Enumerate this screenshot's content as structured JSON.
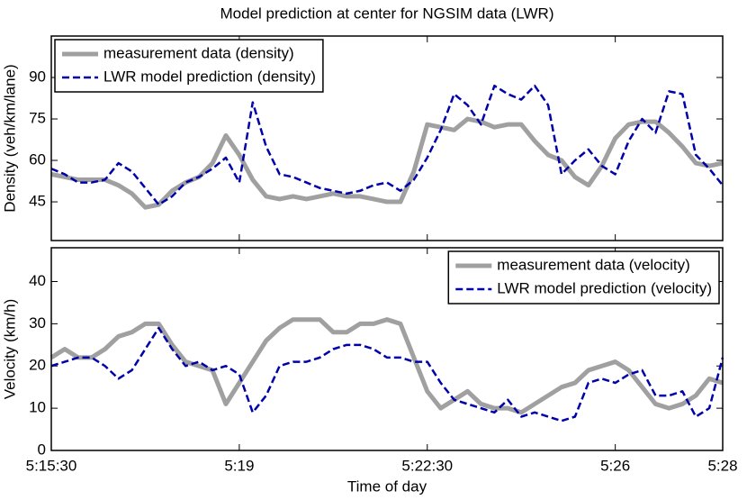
{
  "chart_data": [
    {
      "type": "line",
      "title": "Model prediction at center for NGSIM data (LWR)",
      "y_label": "Density (veh/km/lane)",
      "x": [
        18930,
        18945,
        18960,
        18975,
        18990,
        19005,
        19020,
        19035,
        19050,
        19065,
        19080,
        19095,
        19110,
        19125,
        19140,
        19155,
        19170,
        19185,
        19200,
        19215,
        19230,
        19245,
        19260,
        19275,
        19290,
        19305,
        19320,
        19335,
        19350,
        19365,
        19380,
        19395,
        19410,
        19425,
        19440,
        19455,
        19470,
        19485,
        19500,
        19515,
        19530,
        19545,
        19560,
        19575,
        19590,
        19605,
        19620,
        19635,
        19650,
        19665,
        19680
      ],
      "series": [
        {
          "name": "measurement data (density)",
          "color": "#a0a0a0",
          "values": [
            55,
            54,
            53,
            53,
            53,
            51,
            48,
            43,
            44,
            49,
            52,
            54,
            59,
            69,
            62,
            53,
            47,
            46,
            47,
            46,
            47,
            48,
            47,
            47,
            46,
            45,
            45,
            56,
            73,
            72,
            71,
            75,
            74,
            72,
            73,
            73,
            67,
            62,
            60,
            54,
            51,
            58,
            68,
            73,
            74,
            74,
            70,
            65,
            59,
            58,
            59
          ]
        },
        {
          "name": "LWR model prediction (density)",
          "color": "#0000aa",
          "values": [
            57,
            55,
            52,
            52,
            53,
            59,
            56,
            50,
            44,
            47,
            52,
            54,
            57,
            61,
            52,
            81,
            65,
            55,
            54,
            52,
            50,
            49,
            48,
            49,
            51,
            52,
            49,
            53,
            61,
            71,
            84,
            80,
            73,
            87,
            84,
            82,
            87,
            80,
            55,
            60,
            64,
            58,
            55,
            67,
            75,
            70,
            85,
            84,
            62,
            57,
            51
          ]
        }
      ],
      "xlim": [
        18930,
        19680
      ],
      "ylim": [
        31,
        105
      ],
      "yticks": [
        45,
        60,
        75,
        90
      ],
      "legend": "upper left"
    },
    {
      "type": "line",
      "x_label": "Time of day",
      "y_label": "Velocity (km/h)",
      "x": [
        18930,
        18945,
        18960,
        18975,
        18990,
        19005,
        19020,
        19035,
        19050,
        19065,
        19080,
        19095,
        19110,
        19125,
        19140,
        19155,
        19170,
        19185,
        19200,
        19215,
        19230,
        19245,
        19260,
        19275,
        19290,
        19305,
        19320,
        19335,
        19350,
        19365,
        19380,
        19395,
        19410,
        19425,
        19440,
        19455,
        19470,
        19485,
        19500,
        19515,
        19530,
        19545,
        19560,
        19575,
        19590,
        19605,
        19620,
        19635,
        19650,
        19665,
        19680
      ],
      "series": [
        {
          "name": "measurement data (velocity)",
          "color": "#a0a0a0",
          "values": [
            22,
            24,
            22,
            22,
            24,
            27,
            28,
            30,
            30,
            25,
            21,
            20,
            19,
            11,
            16,
            21,
            26,
            29,
            31,
            31,
            31,
            28,
            28,
            30,
            30,
            31,
            30,
            22,
            14,
            10,
            12,
            14,
            11,
            10,
            10,
            9,
            11,
            13,
            15,
            16,
            19,
            20,
            21,
            19,
            15,
            11,
            10,
            11,
            13,
            17,
            16
          ]
        },
        {
          "name": "LWR model prediction (velocity)",
          "color": "#0000aa",
          "values": [
            20,
            21,
            22,
            22,
            20,
            17,
            19,
            24,
            29,
            24,
            20,
            21,
            19,
            20,
            18,
            9,
            13,
            20,
            21,
            21,
            22,
            24,
            25,
            25,
            24,
            22,
            22,
            21,
            21,
            16,
            12,
            11,
            10,
            9,
            12,
            8,
            9,
            8,
            7,
            8,
            16,
            17,
            16,
            18,
            19,
            13,
            13,
            14,
            8,
            10,
            22
          ]
        }
      ],
      "xlim": [
        18930,
        19680
      ],
      "ylim": [
        0,
        48
      ],
      "yticks": [
        0,
        10,
        20,
        30,
        40
      ],
      "xticks": [
        {
          "value": 18930,
          "label": "5:15:30"
        },
        {
          "value": 19140,
          "label": "5:19"
        },
        {
          "value": 19350,
          "label": "5:22:30"
        },
        {
          "value": 19560,
          "label": "5:26"
        },
        {
          "value": 19680,
          "label": "5:28"
        }
      ],
      "legend": "upper right"
    }
  ]
}
